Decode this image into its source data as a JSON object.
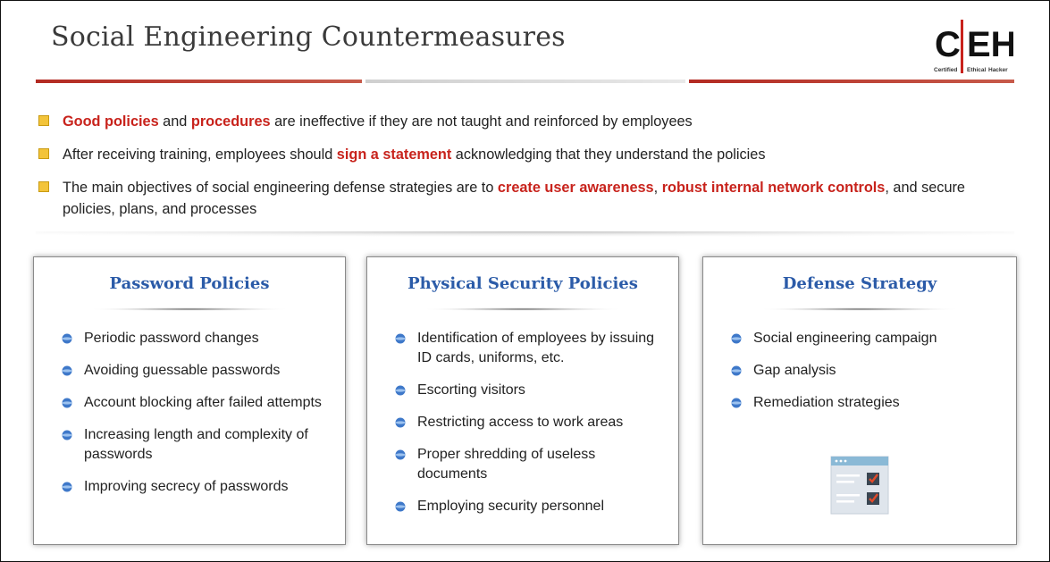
{
  "title": "Social Engineering Countermeasures",
  "logo": {
    "letters_left": "C",
    "letters_right": "EH",
    "tagline_1": "Certified",
    "tagline_2": "Ethical",
    "tagline_3": "Hacker"
  },
  "bullets": [
    {
      "parts": [
        {
          "text": "Good policies",
          "highlight": true
        },
        {
          "text": " and ",
          "highlight": false
        },
        {
          "text": "procedures",
          "highlight": true
        },
        {
          "text": " are ineffective if they are not taught and reinforced by employees",
          "highlight": false
        }
      ]
    },
    {
      "parts": [
        {
          "text": "After receiving training, employees should ",
          "highlight": false
        },
        {
          "text": "sign a statement",
          "highlight": true
        },
        {
          "text": " acknowledging that they understand the policies",
          "highlight": false
        }
      ]
    },
    {
      "parts": [
        {
          "text": "The main objectives of social engineering defense strategies are to ",
          "highlight": false
        },
        {
          "text": "create user awareness",
          "highlight": true
        },
        {
          "text": ", ",
          "highlight": false
        },
        {
          "text": "robust internal network controls",
          "highlight": true
        },
        {
          "text": ", and secure policies, plans, and processes",
          "highlight": false
        }
      ]
    }
  ],
  "cards": [
    {
      "heading": "Password Policies",
      "items": [
        "Periodic password changes",
        "Avoiding guessable passwords",
        "Account blocking after failed attempts",
        "Increasing length and complexity of passwords",
        "Improving secrecy of passwords"
      ]
    },
    {
      "heading": "Physical Security Policies",
      "items": [
        "Identification of employees by issuing ID cards, uniforms, etc.",
        "Escorting visitors",
        "Restricting access to work areas",
        "Proper shredding of useless documents",
        "Employing security personnel"
      ]
    },
    {
      "heading": "Defense Strategy",
      "items": [
        "Social engineering campaign",
        "Gap analysis",
        "Remediation strategies"
      ]
    }
  ],
  "colors": {
    "accent_red": "#c8231c",
    "heading_blue": "#2b5ba8",
    "bullet_yellow": "#f3c43a"
  }
}
